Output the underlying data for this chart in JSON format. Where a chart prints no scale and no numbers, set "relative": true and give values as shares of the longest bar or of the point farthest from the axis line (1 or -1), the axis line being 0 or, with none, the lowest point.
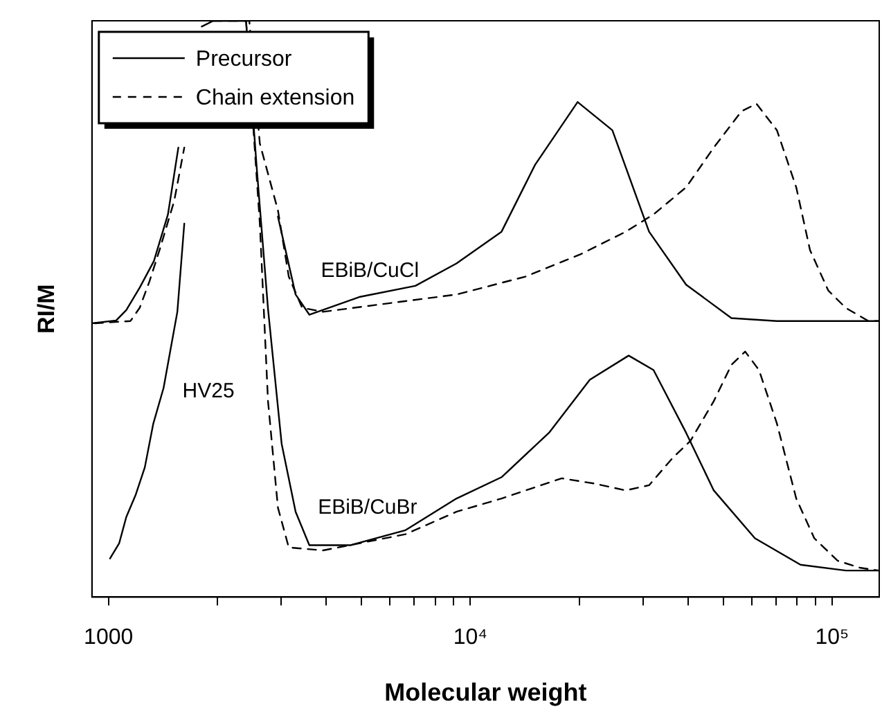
{
  "chart_data": {
    "type": "line",
    "xlabel": "Molecular weight",
    "ylabel": "RI/M",
    "relative": true,
    "log": "x",
    "marker": "none",
    "legend": "top left",
    "tick_labels": "x",
    "xlim": [
      900,
      135000
    ],
    "xticks": [
      1000,
      {
        "value": 2000,
        "label": null
      },
      {
        "value": 3000,
        "label": null
      },
      {
        "value": 4000,
        "label": null
      },
      {
        "value": 5000,
        "label": null
      },
      {
        "value": 6000,
        "label": null
      },
      {
        "value": 7000,
        "label": null
      },
      {
        "value": 8000,
        "label": null
      },
      {
        "value": 9000,
        "label": null
      },
      {
        "value": 10000,
        "label": "10⁴"
      },
      {
        "value": 20000,
        "label": null
      },
      {
        "value": 30000,
        "label": null
      },
      {
        "value": 40000,
        "label": null
      },
      {
        "value": 50000,
        "label": null
      },
      {
        "value": 60000,
        "label": null
      },
      {
        "value": 70000,
        "label": null
      },
      {
        "value": 80000,
        "label": null
      },
      {
        "value": 90000,
        "label": null
      },
      {
        "value": 100000,
        "label": "10⁵"
      }
    ],
    "annotations": [
      "EBiB/CuCl",
      "EBiB/CuBr",
      "HV25"
    ],
    "series": [
      {
        "name": "Precursor",
        "color": "#000000",
        "line_style": "solid",
        "x": [
          900,
          1050,
          1120,
          1220,
          1335,
          1460,
          1560,
          1660,
          1735,
          1810,
          1950,
          2400,
          2580,
          2940,
          3290,
          3590,
          4960,
          7050,
          9160,
          12200,
          15100,
          19800,
          24700,
          31200,
          39500,
          52700,
          70400,
          134600
        ],
        "values": [
          0.475,
          0.48,
          0.498,
          0.537,
          0.583,
          0.664,
          0.78,
          null,
          null,
          0.99,
          1,
          1,
          null,
          0.66,
          0.525,
          0.49,
          0.521,
          0.54,
          0.579,
          0.634,
          0.75,
          0.859,
          0.81,
          0.634,
          0.542,
          0.484,
          0.479,
          0.479
        ]
      },
      {
        "name": "Chain extension",
        "color": "#000000",
        "line_style": "dashed",
        "x": [
          916,
          1150,
          1220,
          1300,
          1390,
          1520,
          1620,
          1710,
          1950,
          2450,
          2620,
          2940,
          3150,
          3430,
          3920,
          9160,
          14200,
          20200,
          26900,
          32100,
          39500,
          47100,
          56200,
          61800,
          70400,
          79600,
          86900,
          97600,
          109000,
          126000,
          134600
        ],
        "values": [
          0.475,
          0.479,
          0.502,
          0.549,
          0.606,
          0.688,
          0.78,
          null,
          1,
          1,
          0.787,
          0.671,
          0.556,
          0.502,
          0.495,
          0.525,
          0.556,
          0.595,
          0.634,
          0.664,
          0.711,
          0.78,
          0.843,
          0.856,
          0.81,
          0.711,
          0.602,
          0.532,
          0.502,
          0.479,
          0.479
        ]
      },
      {
        "color": "#000000",
        "line_style": "solid",
        "x": [
          1010,
          1070,
          1120,
          1190,
          1260,
          1330,
          1420,
          1550,
          1620,
          1690,
          1900,
          2400,
          2570,
          2760,
          3010,
          3290,
          3590,
          4670,
          6620,
          9160,
          12200,
          16500,
          21400,
          27400,
          32100,
          39500,
          47100,
          61200,
          81800,
          109200,
          134600
        ],
        "values": [
          0.067,
          0.093,
          0.139,
          0.178,
          0.225,
          0.301,
          0.363,
          0.495,
          0.648,
          null,
          1,
          1,
          0.743,
          0.5,
          0.266,
          0.148,
          0.09,
          0.09,
          0.116,
          0.171,
          0.208,
          0.285,
          0.377,
          0.419,
          0.394,
          0.285,
          0.185,
          0.102,
          0.056,
          0.046,
          0.046
        ]
      },
      {
        "color": "#000000",
        "line_style": "dashed",
        "x": [
          2400,
          2620,
          2760,
          2940,
          3150,
          3920,
          6620,
          9160,
          12200,
          17900,
          22000,
          26900,
          31200,
          36200,
          40600,
          47100,
          52700,
          57500,
          62800,
          70400,
          79600,
          89300,
          103600,
          119200,
          134600
        ],
        "values": [
          1,
          0.648,
          0.34,
          0.155,
          0.086,
          0.081,
          0.109,
          0.148,
          0.171,
          0.206,
          0.197,
          0.185,
          0.194,
          0.241,
          0.271,
          0.34,
          0.403,
          0.426,
          0.394,
          0.301,
          0.171,
          0.102,
          0.063,
          0.051,
          0.046
        ]
      }
    ]
  }
}
